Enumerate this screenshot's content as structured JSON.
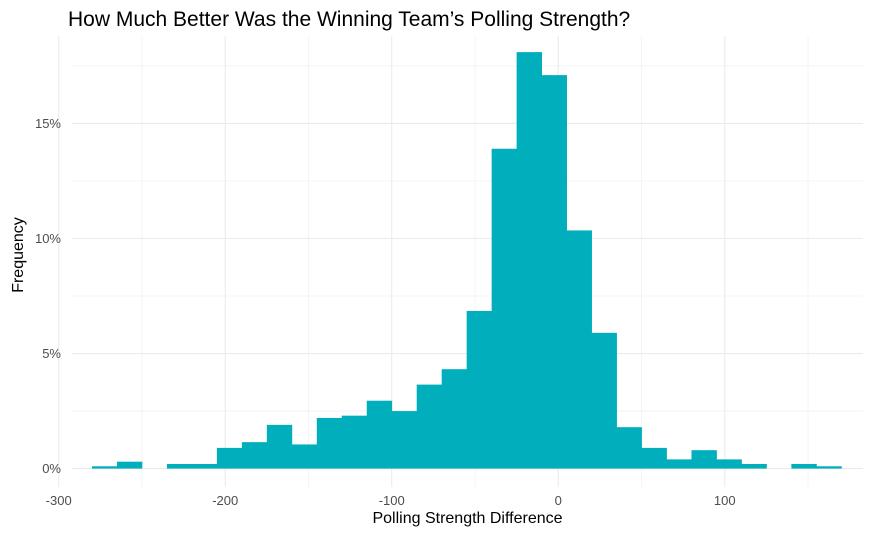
{
  "chart_data": {
    "type": "bar",
    "title": "How Much Better Was the Winning Team’s Polling Strength?",
    "xlabel": "Polling Strength Difference",
    "ylabel": "Frequency",
    "xlim": [
      -292,
      183
    ],
    "ylim": [
      -0.008,
      0.188
    ],
    "x_ticks": [
      -300,
      -200,
      -100,
      0,
      100
    ],
    "x_tick_labels": [
      "-300",
      "-200",
      "-100",
      "0",
      "100"
    ],
    "y_ticks": [
      0,
      0.05,
      0.1,
      0.15
    ],
    "y_tick_labels": [
      "0%",
      "5%",
      "10%",
      "15%"
    ],
    "bin_width": 15,
    "bars": [
      {
        "x0": -280,
        "x1": -265,
        "value": 0.001
      },
      {
        "x0": -265,
        "x1": -250,
        "value": 0.003
      },
      {
        "x0": -250,
        "x1": -235,
        "value": 0.0
      },
      {
        "x0": -235,
        "x1": -220,
        "value": 0.002
      },
      {
        "x0": -220,
        "x1": -205,
        "value": 0.002
      },
      {
        "x0": -205,
        "x1": -190,
        "value": 0.009
      },
      {
        "x0": -190,
        "x1": -175,
        "value": 0.0115
      },
      {
        "x0": -175,
        "x1": -160,
        "value": 0.019
      },
      {
        "x0": -160,
        "x1": -145,
        "value": 0.0105
      },
      {
        "x0": -145,
        "x1": -130,
        "value": 0.022
      },
      {
        "x0": -130,
        "x1": -115,
        "value": 0.023
      },
      {
        "x0": -115,
        "x1": -100,
        "value": 0.0295
      },
      {
        "x0": -100,
        "x1": -85,
        "value": 0.025
      },
      {
        "x0": -85,
        "x1": -70,
        "value": 0.0365
      },
      {
        "x0": -70,
        "x1": -55,
        "value": 0.0432
      },
      {
        "x0": -55,
        "x1": -40,
        "value": 0.0685
      },
      {
        "x0": -40,
        "x1": -25,
        "value": 0.139
      },
      {
        "x0": -25,
        "x1": -10,
        "value": 0.181
      },
      {
        "x0": -10,
        "x1": 5,
        "value": 0.171
      },
      {
        "x0": 5,
        "x1": 20,
        "value": 0.1035
      },
      {
        "x0": 20,
        "x1": 35,
        "value": 0.059
      },
      {
        "x0": 35,
        "x1": 50,
        "value": 0.018
      },
      {
        "x0": 50,
        "x1": 65,
        "value": 0.009
      },
      {
        "x0": 65,
        "x1": 80,
        "value": 0.004
      },
      {
        "x0": 80,
        "x1": 95,
        "value": 0.008
      },
      {
        "x0": 95,
        "x1": 110,
        "value": 0.004
      },
      {
        "x0": 110,
        "x1": 125,
        "value": 0.002
      },
      {
        "x0": 125,
        "x1": 140,
        "value": 0.0
      },
      {
        "x0": 140,
        "x1": 155,
        "value": 0.002
      },
      {
        "x0": 155,
        "x1": 170,
        "value": 0.001
      }
    ],
    "bar_color": "#00AFBB",
    "grid": true,
    "legend": "none"
  }
}
